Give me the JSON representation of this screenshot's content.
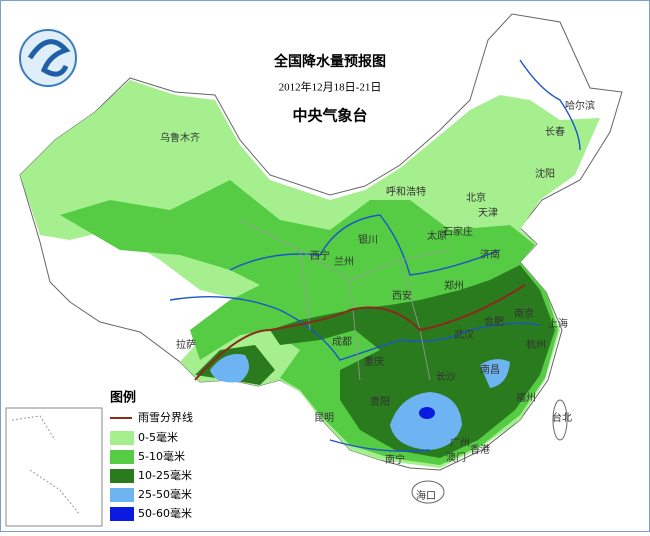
{
  "header": {
    "title": "全国降水量预报图",
    "date": "2012年12月18日-21日",
    "agency": "中央气象台"
  },
  "legend": {
    "title": "图例",
    "line": {
      "label": "雨雪分界线",
      "color": "#8b2a1a"
    },
    "items": [
      {
        "label": "0-5毫米",
        "color": "#a6ef8f"
      },
      {
        "label": "5-10毫米",
        "color": "#55cc44"
      },
      {
        "label": "10-25毫米",
        "color": "#2a7a1e"
      },
      {
        "label": "25-50毫米",
        "color": "#6fb4f2"
      },
      {
        "label": "50-60毫米",
        "color": "#0a1ae0"
      }
    ]
  },
  "cities": [
    "乌鲁木齐",
    "哈尔滨",
    "长春",
    "沈阳",
    "呼和浩特",
    "北京",
    "天津",
    "石家庄",
    "太原",
    "济南",
    "银川",
    "西宁",
    "兰州",
    "西安",
    "郑州",
    "合肥",
    "南京",
    "上海",
    "武汉",
    "杭州",
    "成都",
    "重庆",
    "长沙",
    "南昌",
    "贵阳",
    "昆明",
    "南宁",
    "广州",
    "香港",
    "澳门",
    "福州",
    "台北",
    "海口",
    "拉萨"
  ]
}
